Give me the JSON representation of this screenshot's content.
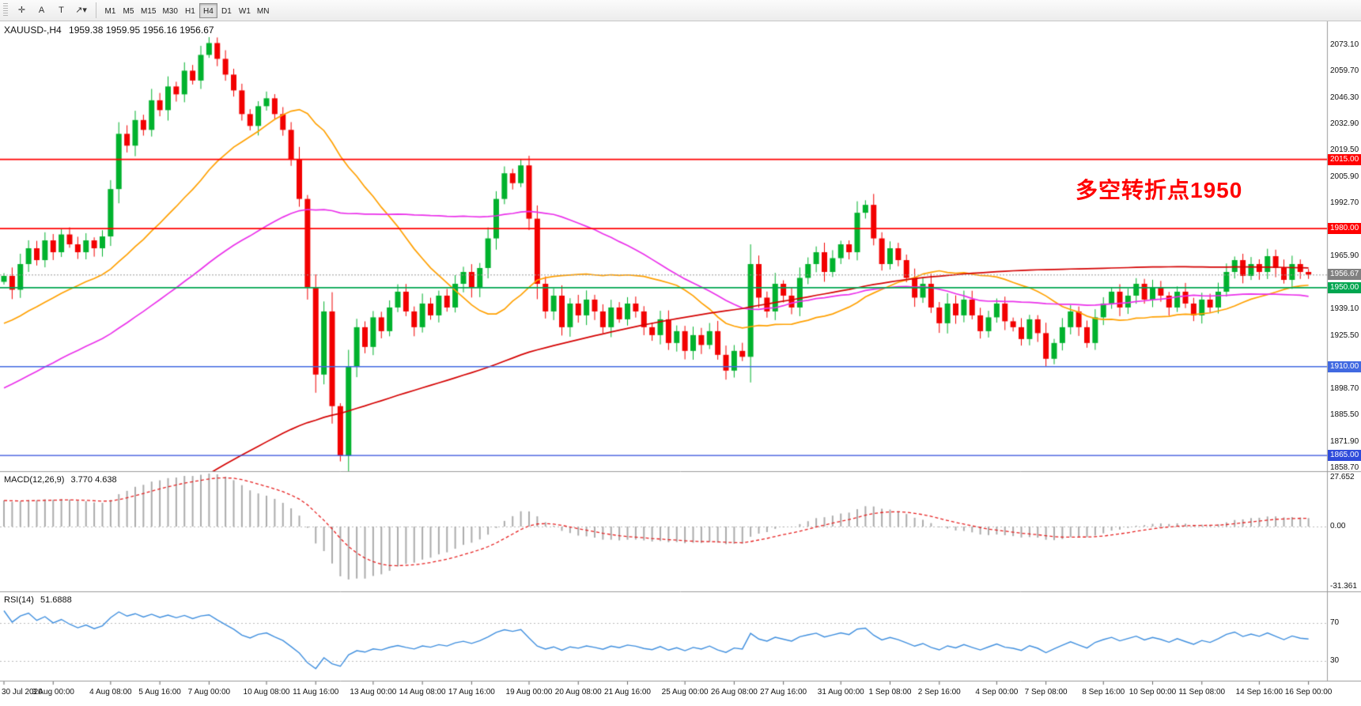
{
  "toolbar": {
    "tools": [
      {
        "name": "cursor-tool",
        "glyph": "✛"
      },
      {
        "name": "text-label-tool",
        "glyph": "A"
      },
      {
        "name": "text-box-tool",
        "glyph": "T"
      },
      {
        "name": "shapes-dropdown",
        "glyph": "↗▾"
      }
    ],
    "timeframes": [
      "M1",
      "M5",
      "M15",
      "M30",
      "H1",
      "H4",
      "D1",
      "W1",
      "MN"
    ],
    "active_timeframe": "H4"
  },
  "chart": {
    "title": "XAUUSD-,H4",
    "ohlc_text": "1959.38 1959.95 1956.16 1956.67",
    "annotation": {
      "text": "多空转折点1950",
      "color": "#FF0000"
    },
    "axis_labels": [
      "2073.10",
      "2059.70",
      "2046.30",
      "2032.90",
      "2019.50",
      "2005.90",
      "1992.70",
      "1965.90",
      "1939.10",
      "1925.50",
      "1898.70",
      "1885.50",
      "1871.90",
      "1858.70"
    ],
    "price_badges": [
      {
        "text": "2015.00",
        "bg": "#FF0000"
      },
      {
        "text": "1980.00",
        "bg": "#FF0000"
      },
      {
        "text": "1956.67",
        "bg": "#808080"
      },
      {
        "text": "1950.00",
        "bg": "#00A650"
      },
      {
        "text": "1910.00",
        "bg": "#4169E1"
      },
      {
        "text": "1865.00",
        "bg": "#2E4BDB"
      }
    ],
    "time_labels": [
      "30 Jul 2020",
      "3 Aug 00:00",
      "4 Aug 08:00",
      "5 Aug 16:00",
      "7 Aug 00:00",
      "10 Aug 08:00",
      "11 Aug 16:00",
      "13 Aug 00:00",
      "14 Aug 08:00",
      "17 Aug 16:00",
      "19 Aug 00:00",
      "20 Aug 08:00",
      "21 Aug 16:00",
      "25 Aug 00:00",
      "26 Aug 08:00",
      "27 Aug 16:00",
      "31 Aug 00:00",
      "1 Sep 08:00",
      "2 Sep 16:00",
      "4 Sep 00:00",
      "7 Sep 08:00",
      "8 Sep 16:00",
      "10 Sep 00:00",
      "11 Sep 08:00",
      "14 Sep 16:00",
      "16 Sep 00:00"
    ]
  },
  "indicators": {
    "macd": {
      "label": "MACD(12,26,9)",
      "values": "3.770 4.638",
      "axis": [
        "27.652",
        "0.00",
        "-31.361"
      ],
      "fast": 12,
      "slow": 26,
      "signal_period": 9,
      "histogram_color": "#ABABAB",
      "signal_color": "#E62020"
    },
    "rsi": {
      "label": "RSI(14)",
      "value": "51.6888",
      "period": 14,
      "levels": [
        "70",
        "30"
      ],
      "line_color": "#3E8EDE"
    }
  },
  "chart_data": {
    "type": "candlestick",
    "symbol": "XAUUSD-",
    "timeframe": "H4",
    "current": {
      "open": 1959.38,
      "high": 1959.95,
      "low": 1956.16,
      "close": 1956.67
    },
    "ylim": [
      1858.7,
      2073.1
    ],
    "up_color": "#00B22D",
    "down_color": "#F20000",
    "closes": [
      1956,
      1949,
      1962,
      1970,
      1964,
      1974,
      1968,
      1977,
      1972,
      1968,
      1974,
      1970,
      1976,
      2000,
      2028,
      2022,
      2035,
      2030,
      2045,
      2040,
      2052,
      2048,
      2060,
      2055,
      2068,
      2074,
      2066,
      2058,
      2050,
      2038,
      2032,
      2042,
      2046,
      2038,
      2030,
      2015,
      1995,
      1950,
      1906,
      1938,
      1890,
      1865,
      1910,
      1930,
      1920,
      1935,
      1928,
      1940,
      1948,
      1938,
      1930,
      1942,
      1936,
      1946,
      1940,
      1952,
      1958,
      1950,
      1960,
      1975,
      1995,
      2008,
      2003,
      2012,
      1985,
      1952,
      1938,
      1946,
      1930,
      1942,
      1936,
      1944,
      1938,
      1930,
      1940,
      1934,
      1942,
      1938,
      1930,
      1926,
      1934,
      1922,
      1928,
      1918,
      1926,
      1921,
      1928,
      1916,
      1908,
      1918,
      1915,
      1962,
      1945,
      1938,
      1952,
      1946,
      1940,
      1955,
      1962,
      1968,
      1958,
      1965,
      1972,
      1968,
      1988,
      1992,
      1975,
      1962,
      1970,
      1964,
      1955,
      1945,
      1952,
      1940,
      1932,
      1942,
      1936,
      1944,
      1936,
      1928,
      1935,
      1942,
      1933,
      1930,
      1924,
      1934,
      1927,
      1914,
      1922,
      1930,
      1938,
      1930,
      1922,
      1935,
      1942,
      1948,
      1940,
      1946,
      1952,
      1944,
      1950,
      1946,
      1940,
      1948,
      1942,
      1936,
      1944,
      1940,
      1948,
      1958,
      1964,
      1956,
      1962,
      1958,
      1966,
      1960,
      1954,
      1962,
      1958,
      1956.67
    ],
    "hlines": [
      {
        "price": 2015.0,
        "color": "#FF0000",
        "width": 1.8
      },
      {
        "price": 1980.0,
        "color": "#FF0000",
        "width": 1.8
      },
      {
        "price": 1950.0,
        "color": "#00A650",
        "width": 1.8
      },
      {
        "price": 1910.0,
        "color": "#4169E1",
        "width": 1.4
      },
      {
        "price": 1865.0,
        "color": "#2E4BDB",
        "width": 1.4
      }
    ],
    "bid_line": {
      "price": 1956.67,
      "color": "#999999"
    },
    "moving_averages": [
      {
        "period": 24,
        "color": "#FFA000"
      },
      {
        "period": 55,
        "color": "#EA30EA"
      },
      {
        "period": 150,
        "color": "#D40000"
      }
    ]
  }
}
